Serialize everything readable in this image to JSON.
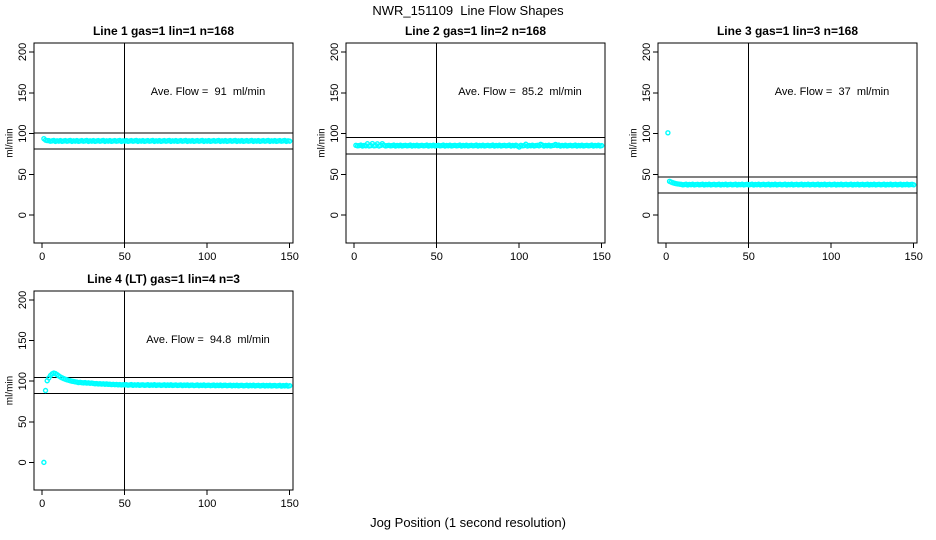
{
  "title": "NWR_151109  Line Flow Shapes",
  "xlabel": "Jog Position (1 second resolution)",
  "colors": {
    "marker": "#00FFFF",
    "axis": "#000000",
    "background": "#FFFFFF",
    "text": "#000000"
  },
  "chart_data": [
    {
      "type": "scatter",
      "title": "Line 1 gas=1 lin=1 n=168",
      "annotation": "Ave. Flow =  91  ml/min",
      "ave_flow": 91,
      "n": 168,
      "ylabel": "ml/min",
      "xticks": [
        0,
        50,
        100,
        150
      ],
      "yticks": [
        0,
        50,
        100,
        150,
        200
      ],
      "xlim": [
        -5,
        152
      ],
      "ylim": [
        -34,
        211
      ],
      "vline_x": 50,
      "hlines": [
        101,
        81
      ],
      "marker": "open-circle",
      "x_start": 1,
      "x_step": 1,
      "y": [
        93.8,
        92.0,
        91.5,
        91.4,
        90.7,
        91.1,
        91.6,
        90.5,
        91.2,
        90.8,
        91.5,
        90.6,
        91.0,
        91.4,
        90.7,
        91.1,
        91.6,
        90.5,
        91.2,
        90.8,
        91.5,
        90.6,
        91.0,
        91.4,
        90.7,
        91.1,
        91.6,
        90.5,
        91.2,
        90.8,
        91.5,
        90.6,
        91.0,
        91.4,
        90.7,
        91.1,
        91.6,
        90.5,
        91.2,
        90.8,
        91.5,
        90.6,
        91.0,
        91.4,
        90.7,
        91.1,
        91.6,
        90.5,
        91.2,
        90.8,
        91.5,
        90.6,
        91.0,
        91.4,
        90.7,
        91.1,
        91.6,
        90.5,
        91.2,
        90.8,
        91.5,
        90.6,
        91.0,
        91.4,
        90.7,
        91.1,
        91.6,
        90.5,
        91.2,
        90.8,
        91.5,
        90.6,
        91.0,
        91.4,
        90.7,
        91.1,
        91.6,
        90.5,
        91.2,
        90.8,
        91.5,
        90.6,
        91.0,
        91.4,
        90.7,
        91.1,
        91.6,
        90.5,
        91.2,
        90.8,
        91.5,
        90.6,
        91.0,
        91.4,
        90.7,
        91.1,
        91.6,
        90.5,
        91.2,
        90.8,
        91.5,
        90.6,
        91.0,
        91.4,
        90.7,
        91.1,
        91.6,
        90.5,
        91.2,
        90.8,
        91.5,
        90.6,
        91.0,
        91.4,
        90.7,
        91.1,
        91.6,
        90.5,
        91.2,
        90.8,
        91.5,
        90.6,
        91.0,
        91.4,
        90.7,
        91.1,
        91.6,
        90.5,
        91.2,
        90.8,
        91.5,
        90.6,
        91.0,
        91.4,
        90.7,
        91.1,
        91.6,
        90.5,
        91.2,
        90.8,
        91.5,
        90.6,
        91.0,
        91.4,
        90.7,
        91.1,
        91.6,
        90.5,
        91.2,
        90.8
      ]
    },
    {
      "type": "scatter",
      "title": "Line 2 gas=1 lin=2 n=168",
      "annotation": "Ave. Flow =  85.2  ml/min",
      "ave_flow": 85.2,
      "n": 168,
      "ylabel": "ml/min",
      "xticks": [
        0,
        50,
        100,
        150
      ],
      "yticks": [
        0,
        50,
        100,
        150,
        200
      ],
      "xlim": [
        -5,
        152
      ],
      "ylim": [
        -34,
        211
      ],
      "vline_x": 50,
      "hlines": [
        95.2,
        75.2
      ],
      "marker": "open-circle",
      "x_start": 1,
      "x_step": 1,
      "y": [
        85.7,
        85.0,
        85.4,
        85.9,
        84.8,
        85.5,
        85.1,
        87.6,
        84.9,
        85.3,
        87.8,
        85.0,
        85.4,
        87.5,
        84.8,
        85.5,
        87.7,
        85.8,
        84.9,
        85.3,
        85.7,
        85.0,
        85.4,
        85.9,
        84.8,
        85.5,
        85.1,
        85.8,
        84.9,
        85.3,
        85.7,
        85.0,
        85.4,
        85.9,
        84.8,
        85.5,
        85.1,
        85.8,
        84.9,
        85.3,
        85.7,
        85.0,
        85.4,
        85.9,
        84.8,
        85.5,
        85.1,
        85.8,
        84.9,
        85.3,
        85.7,
        85.0,
        85.4,
        85.9,
        84.8,
        85.5,
        85.1,
        85.8,
        84.9,
        85.3,
        85.7,
        85.0,
        85.4,
        85.9,
        84.8,
        85.5,
        85.1,
        85.8,
        84.9,
        85.3,
        85.7,
        85.0,
        85.4,
        85.9,
        84.8,
        85.5,
        85.1,
        85.8,
        84.9,
        85.3,
        85.7,
        85.0,
        85.4,
        85.9,
        84.8,
        85.5,
        85.1,
        85.8,
        84.9,
        85.3,
        85.7,
        85.0,
        85.4,
        85.9,
        84.8,
        85.5,
        85.1,
        85.8,
        84.9,
        83.6,
        85.7,
        85.0,
        85.4,
        87.0,
        84.8,
        85.5,
        85.1,
        85.8,
        84.9,
        85.3,
        85.7,
        85.0,
        86.9,
        85.9,
        84.8,
        85.5,
        85.1,
        85.8,
        84.9,
        85.3,
        85.7,
        86.8,
        85.4,
        85.9,
        84.8,
        85.5,
        85.1,
        85.8,
        84.9,
        85.3,
        85.7,
        85.0,
        85.4,
        85.9,
        84.8,
        85.5,
        85.1,
        85.8,
        84.9,
        85.3,
        85.7,
        85.0,
        85.4,
        85.9,
        84.8,
        85.5,
        85.1,
        85.8,
        84.9,
        85.3
      ]
    },
    {
      "type": "scatter",
      "title": "Line 3 gas=1 lin=3 n=168",
      "annotation": "Ave. Flow =  37  ml/min",
      "ave_flow": 37,
      "n": 168,
      "ylabel": "ml/min",
      "xticks": [
        0,
        50,
        100,
        150
      ],
      "yticks": [
        0,
        50,
        100,
        150,
        200
      ],
      "xlim": [
        -5,
        152
      ],
      "ylim": [
        -34,
        211
      ],
      "vline_x": 50,
      "hlines": [
        47,
        27
      ],
      "marker": "open-circle",
      "x_start": 1,
      "x_step": 1,
      "y": [
        101.0,
        41.6,
        40.6,
        39.8,
        39.2,
        38.7,
        38.4,
        38.1,
        37.9,
        37.3,
        37.6,
        38.0,
        37.1,
        37.7,
        37.4,
        38.0,
        37.2,
        37.6,
        37.9,
        37.3,
        37.6,
        38.0,
        37.1,
        37.7,
        37.4,
        38.0,
        37.2,
        37.6,
        37.9,
        37.3,
        37.6,
        38.0,
        37.1,
        37.7,
        37.4,
        38.0,
        37.2,
        37.6,
        37.9,
        37.3,
        37.6,
        38.0,
        37.1,
        37.7,
        37.4,
        38.0,
        37.2,
        37.6,
        37.9,
        37.3,
        37.6,
        38.0,
        37.1,
        37.7,
        37.4,
        38.0,
        37.2,
        37.6,
        37.9,
        37.3,
        37.6,
        38.0,
        37.1,
        37.7,
        37.4,
        38.0,
        37.2,
        37.6,
        37.9,
        37.3,
        37.6,
        38.0,
        37.1,
        37.7,
        37.4,
        38.0,
        37.2,
        37.6,
        37.9,
        37.3,
        37.6,
        38.0,
        37.1,
        37.7,
        37.4,
        38.0,
        37.2,
        37.6,
        37.9,
        37.3,
        37.6,
        38.0,
        37.1,
        37.7,
        37.4,
        38.0,
        37.2,
        37.6,
        37.9,
        37.3,
        37.6,
        38.0,
        37.1,
        37.7,
        37.4,
        38.0,
        37.2,
        37.6,
        37.9,
        37.3,
        37.6,
        38.0,
        37.1,
        37.7,
        37.4,
        38.0,
        37.2,
        37.6,
        37.9,
        37.3,
        37.6,
        38.0,
        37.1,
        37.7,
        37.4,
        38.0,
        37.2,
        37.6,
        37.9,
        37.3,
        37.6,
        38.0,
        37.1,
        37.7,
        37.4,
        38.0,
        37.2,
        37.6,
        37.9,
        37.3,
        37.6,
        38.0,
        37.1,
        37.7,
        37.4,
        38.0,
        37.2,
        37.6,
        37.9,
        37.3
      ]
    },
    {
      "type": "scatter",
      "title": "Line 4 (LT) gas=1 lin=4 n=3",
      "annotation": "Ave. Flow =  94.8  ml/min",
      "ave_flow": 94.8,
      "n": 3,
      "ylabel": "ml/min",
      "xticks": [
        0,
        50,
        100,
        150
      ],
      "yticks": [
        0,
        50,
        100,
        150,
        200
      ],
      "xlim": [
        -5,
        152
      ],
      "ylim": [
        -34,
        211
      ],
      "vline_x": 50,
      "hlines": [
        104.8,
        84.8
      ],
      "marker": "open-circle",
      "x_start": 1,
      "x_step": 1,
      "y": [
        0.0,
        88.5,
        100.5,
        104.0,
        107.0,
        109.0,
        110.0,
        109.3,
        108.0,
        106.5,
        105.2,
        104.1,
        103.2,
        102.4,
        101.7,
        101.1,
        100.5,
        100.0,
        99.6,
        99.2,
        98.9,
        98.3,
        98.6,
        98.1,
        97.9,
        98.2,
        97.6,
        97.9,
        97.4,
        97.7,
        97.2,
        96.8,
        97.1,
        96.6,
        96.9,
        96.4,
        96.7,
        96.2,
        96.5,
        96.1,
        96.3,
        95.8,
        96.1,
        95.7,
        96.0,
        95.5,
        95.8,
        95.4,
        95.7,
        95.5,
        95.6,
        95.1,
        95.4,
        95.8,
        94.9,
        95.5,
        95.1,
        95.7,
        94.9,
        95.3,
        95.5,
        94.9,
        95.2,
        95.6,
        94.8,
        95.4,
        95.0,
        95.6,
        94.8,
        95.2,
        95.4,
        94.8,
        95.1,
        95.5,
        94.7,
        95.3,
        94.9,
        95.5,
        94.7,
        95.1,
        95.3,
        94.7,
        95.0,
        95.4,
        94.6,
        95.2,
        94.8,
        95.4,
        94.6,
        95.0,
        95.2,
        94.6,
        94.9,
        95.3,
        94.5,
        95.1,
        94.7,
        95.3,
        94.5,
        94.9,
        95.1,
        94.5,
        94.8,
        95.2,
        94.4,
        95.0,
        94.6,
        95.2,
        94.4,
        94.8,
        95.0,
        94.4,
        94.7,
        95.1,
        94.3,
        94.9,
        94.5,
        95.1,
        94.3,
        94.7,
        94.9,
        94.3,
        94.6,
        95.0,
        94.2,
        94.8,
        94.4,
        95.0,
        94.2,
        94.6,
        94.8,
        94.2,
        94.5,
        94.9,
        94.1,
        94.7,
        94.3,
        94.9,
        94.1,
        94.5,
        94.7,
        94.1,
        94.4,
        94.8,
        94.0,
        94.6,
        94.2,
        94.8,
        94.0,
        94.4
      ]
    }
  ]
}
